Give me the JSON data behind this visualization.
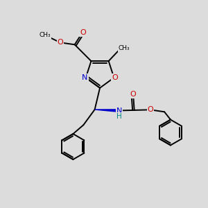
{
  "bg_color": "#dcdcdc",
  "atom_colors": {
    "C": "#000000",
    "N": "#0000cc",
    "O": "#cc0000",
    "H": "#008888"
  },
  "bond_color": "#000000",
  "bond_width": 1.4,
  "ring_sep": 0.1,
  "ext_sep": 0.09
}
